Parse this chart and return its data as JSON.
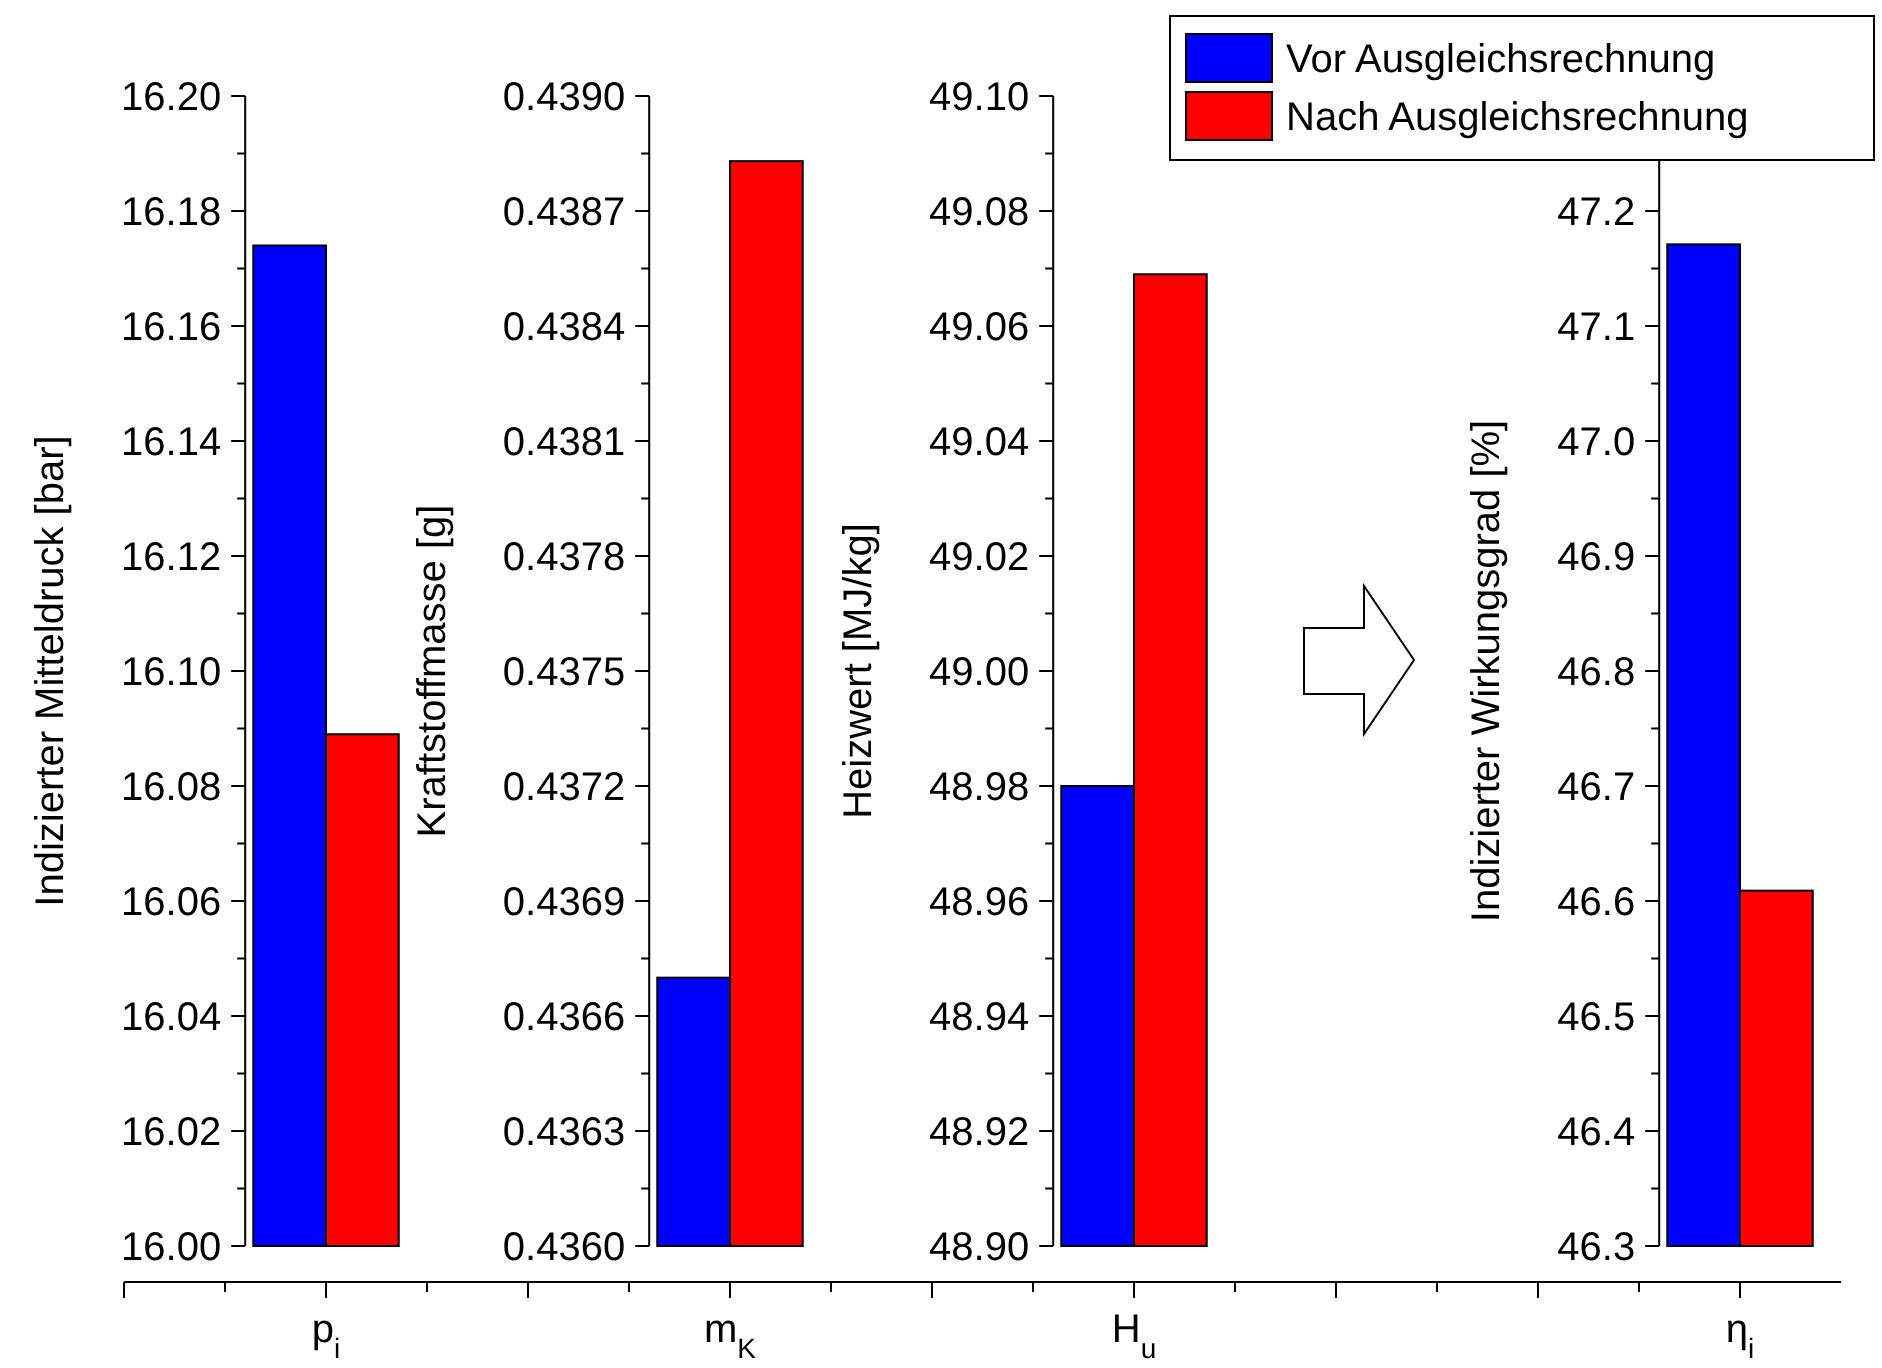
{
  "chart_data": [
    {
      "type": "bar",
      "categories": [
        "p$_{i}$"
      ],
      "ylabel": "Indizierter Mitteldruck [bar]",
      "ylim": [
        16.0,
        16.2
      ],
      "yticks": [
        {
          "value": 16.0,
          "label": "16.00"
        },
        16.02,
        16.04,
        16.06,
        16.08,
        {
          "value": 16.1,
          "label": "16.10"
        },
        16.12,
        16.14,
        16.16,
        16.18,
        {
          "value": 16.2,
          "label": "16.20"
        }
      ],
      "legend": "top right",
      "series": [
        {
          "name": "Vor Ausgleichsrechnung",
          "color": "#0000ff",
          "values": [
            16.174
          ]
        },
        {
          "name": "Nach Ausgleichsrechnung",
          "color": "#ff0000",
          "values": [
            16.089
          ]
        }
      ]
    },
    {
      "type": "bar",
      "categories": [
        "m$_{K}$"
      ],
      "ylabel": "Kraftstoffmasse [g]",
      "ylim": [
        0.436,
        0.439
      ],
      "yticks": [
        {
          "value": 0.436,
          "label": "0.4360"
        },
        0.4363,
        0.4366,
        0.4369,
        0.4372,
        0.4375,
        0.4378,
        0.4381,
        0.4384,
        0.4387,
        {
          "value": 0.439,
          "label": "0.4390"
        }
      ],
      "series": [
        {
          "color": "#0000ff",
          "values": [
            0.4367
          ]
        },
        {
          "color": "#ff0000",
          "values": [
            0.43883
          ]
        }
      ]
    },
    {
      "type": "bar",
      "categories": [
        "H$_{u}$"
      ],
      "ylabel": "Heizwert [MJ/kg]",
      "ylim": [
        48.9,
        49.1
      ],
      "yticks": [
        {
          "value": 48.9,
          "label": "48.90"
        },
        48.92,
        48.94,
        48.96,
        48.98,
        {
          "value": 49.0,
          "label": "49.00"
        },
        49.02,
        49.04,
        49.06,
        49.08,
        {
          "value": 49.1,
          "label": "49.10"
        }
      ],
      "series": [
        {
          "color": "#0000ff",
          "values": [
            48.98
          ]
        },
        {
          "color": "#ff0000",
          "values": [
            49.069
          ]
        }
      ]
    },
    {
      "type": "bar",
      "categories": [
        "η$_{i}$"
      ],
      "ylabel": "Indizierter Wirkungsgrad [%]",
      "ylim": [
        46.3,
        47.3
      ],
      "yticks": [
        46.3,
        46.4,
        46.5,
        46.6,
        46.7,
        46.8,
        46.9,
        {
          "value": 47.0,
          "label": "47.0"
        },
        47.1,
        47.2
      ],
      "series": [
        {
          "color": "#0000ff",
          "values": [
            47.171
          ]
        },
        {
          "color": "#ff0000",
          "values": [
            46.609
          ]
        }
      ]
    }
  ]
}
